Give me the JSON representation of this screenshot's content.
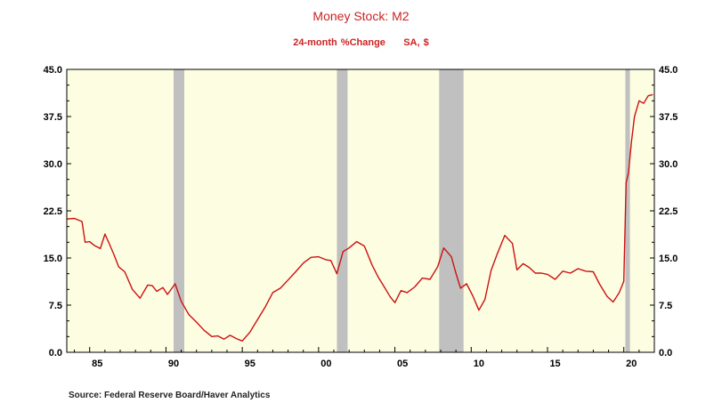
{
  "chart_data": {
    "type": "line",
    "title": "Money Stock: M2",
    "subtitle_measure": "24-month %Change",
    "subtitle_units": "SA, $",
    "source": "Source:  Federal Reserve Board/Haver Analytics",
    "ylim": [
      0.0,
      45.0
    ],
    "y_ticks": [
      "0.0",
      "7.5",
      "15.0",
      "22.5",
      "30.0",
      "37.5",
      "45.0"
    ],
    "x_ticks": [
      "85",
      "90",
      "95",
      "00",
      "05",
      "10",
      "15",
      "20"
    ],
    "x_tick_years": [
      1985,
      1990,
      1995,
      2000,
      2005,
      2010,
      2015,
      2020
    ],
    "xlim": [
      1983.5,
      2022.0
    ],
    "grid": false,
    "plot_background": "#fdfde2",
    "series_color": "#cc1111",
    "recession_color": "#c0c0c0",
    "recessions": [
      [
        1990.5,
        1991.2
      ],
      [
        2001.2,
        2001.9
      ],
      [
        2007.9,
        2009.5
      ],
      [
        2020.1,
        2020.4
      ]
    ],
    "series": [
      {
        "x": [
          1983.5,
          1984.0,
          1984.5,
          1984.7,
          1985.0,
          1985.3,
          1985.7,
          1986.0,
          1986.3,
          1986.6,
          1986.9,
          1987.3,
          1987.8,
          1988.3,
          1988.8,
          1989.1,
          1989.4,
          1989.8,
          1990.1,
          1990.6,
          1991.0,
          1991.5,
          1992.0,
          1992.5,
          1993.0,
          1993.4,
          1993.8,
          1994.2,
          1994.6,
          1995.0,
          1995.5,
          1996.0,
          1996.5,
          1997.0,
          1997.5,
          1998.0,
          1998.5,
          1999.0,
          1999.5,
          2000.0,
          2000.5,
          2000.8,
          2001.2,
          2001.6,
          2002.0,
          2002.5,
          2003.0,
          2003.5,
          2003.9,
          2004.3,
          2004.7,
          2005.0,
          2005.4,
          2005.8,
          2006.3,
          2006.8,
          2007.3,
          2007.8,
          2008.2,
          2008.7,
          2009.0,
          2009.3,
          2009.7,
          2010.1,
          2010.5,
          2010.9,
          2011.3,
          2011.7,
          2012.2,
          2012.7,
          2013.0,
          2013.4,
          2013.8,
          2014.2,
          2014.6,
          2015.0,
          2015.5,
          2016.0,
          2016.5,
          2017.0,
          2017.5,
          2018.0,
          2018.4,
          2018.9,
          2019.3,
          2019.7,
          2020.0,
          2020.15,
          2020.3,
          2020.5,
          2020.7,
          2021.0,
          2021.3,
          2021.6,
          2021.9
        ],
        "values": [
          21.2,
          21.3,
          20.8,
          17.5,
          17.6,
          17.0,
          16.5,
          18.8,
          17.2,
          15.5,
          13.6,
          12.8,
          10.0,
          8.6,
          10.7,
          10.6,
          9.7,
          10.3,
          9.2,
          10.9,
          8.1,
          6.0,
          4.8,
          3.5,
          2.5,
          2.6,
          2.1,
          2.7,
          2.2,
          1.8,
          3.2,
          5.2,
          7.2,
          9.5,
          10.2,
          11.5,
          12.8,
          14.2,
          15.1,
          15.2,
          14.7,
          14.6,
          12.5,
          16.0,
          16.6,
          17.6,
          16.9,
          13.9,
          12.0,
          10.4,
          8.8,
          7.9,
          9.8,
          9.5,
          10.4,
          11.8,
          11.6,
          13.6,
          16.6,
          15.2,
          12.6,
          10.2,
          10.9,
          9.0,
          6.7,
          8.4,
          13.0,
          15.6,
          18.6,
          17.3,
          13.1,
          14.1,
          13.5,
          12.6,
          12.6,
          12.4,
          11.6,
          12.9,
          12.6,
          13.3,
          12.9,
          12.8,
          10.9,
          8.9,
          8.0,
          9.5,
          11.3,
          27.0,
          28.5,
          33.5,
          37.5,
          40.0,
          39.6,
          40.8,
          41.0
        ]
      }
    ]
  }
}
